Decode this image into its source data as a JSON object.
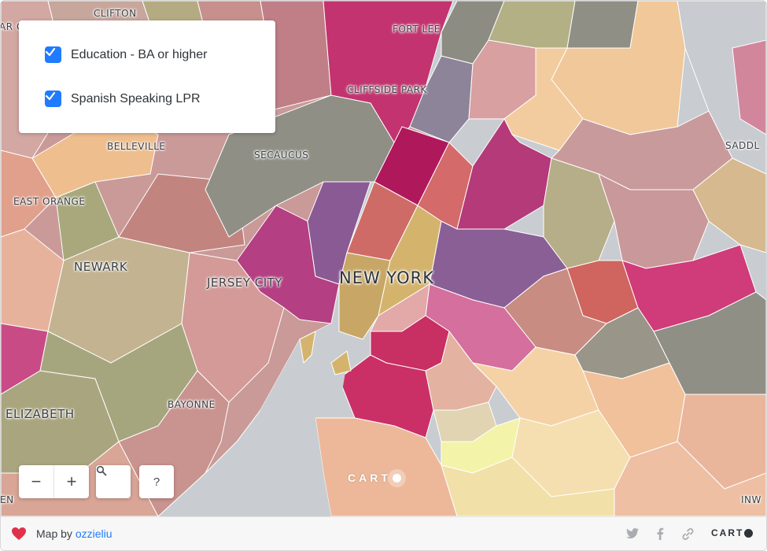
{
  "map": {
    "place_labels": [
      {
        "text": "CLIFTON",
        "size": "sm"
      },
      {
        "text": "AR C",
        "size": "sm"
      },
      {
        "text": "FORT LEE",
        "size": "sm"
      },
      {
        "text": "CLIFFSIDE PARK",
        "size": "sm"
      },
      {
        "text": "BELLEVILLE",
        "size": "sm"
      },
      {
        "text": "SECAUCUS",
        "size": "sm"
      },
      {
        "text": "SADDL",
        "size": "sm"
      },
      {
        "text": "EAST ORANGE",
        "size": "sm"
      },
      {
        "text": "NEWARK",
        "size": "md"
      },
      {
        "text": "JERSEY CITY",
        "size": "md"
      },
      {
        "text": "NEW YORK",
        "size": "lg"
      },
      {
        "text": "BAYONNE",
        "size": "sm"
      },
      {
        "text": "ELIZABETH",
        "size": "md"
      },
      {
        "text": "EN",
        "size": "sm"
      },
      {
        "text": "INW",
        "size": "sm"
      }
    ],
    "watermark": "CART"
  },
  "legend": {
    "layers": [
      {
        "label": "Education - BA or higher",
        "checked": true
      },
      {
        "label": "Spanish Speaking LPR",
        "checked": true
      }
    ]
  },
  "controls": {
    "zoom_out": "−",
    "zoom_in": "+",
    "search_icon": "search-icon",
    "help": "?"
  },
  "footer": {
    "prefix": "Map by",
    "author": "ozzieliu",
    "icons": [
      "twitter-icon",
      "facebook-icon",
      "link-icon"
    ],
    "logo": "CART"
  },
  "colors": {
    "accent": "#1f7bff",
    "heart": "#e0314b",
    "water": "#c9cdd1",
    "magenta": "#c2336f",
    "purple": "#8a5a94",
    "salmon": "#cf6b66",
    "olive": "#a8a87c",
    "peach": "#f0c89a",
    "gray": "#8f8f86"
  }
}
